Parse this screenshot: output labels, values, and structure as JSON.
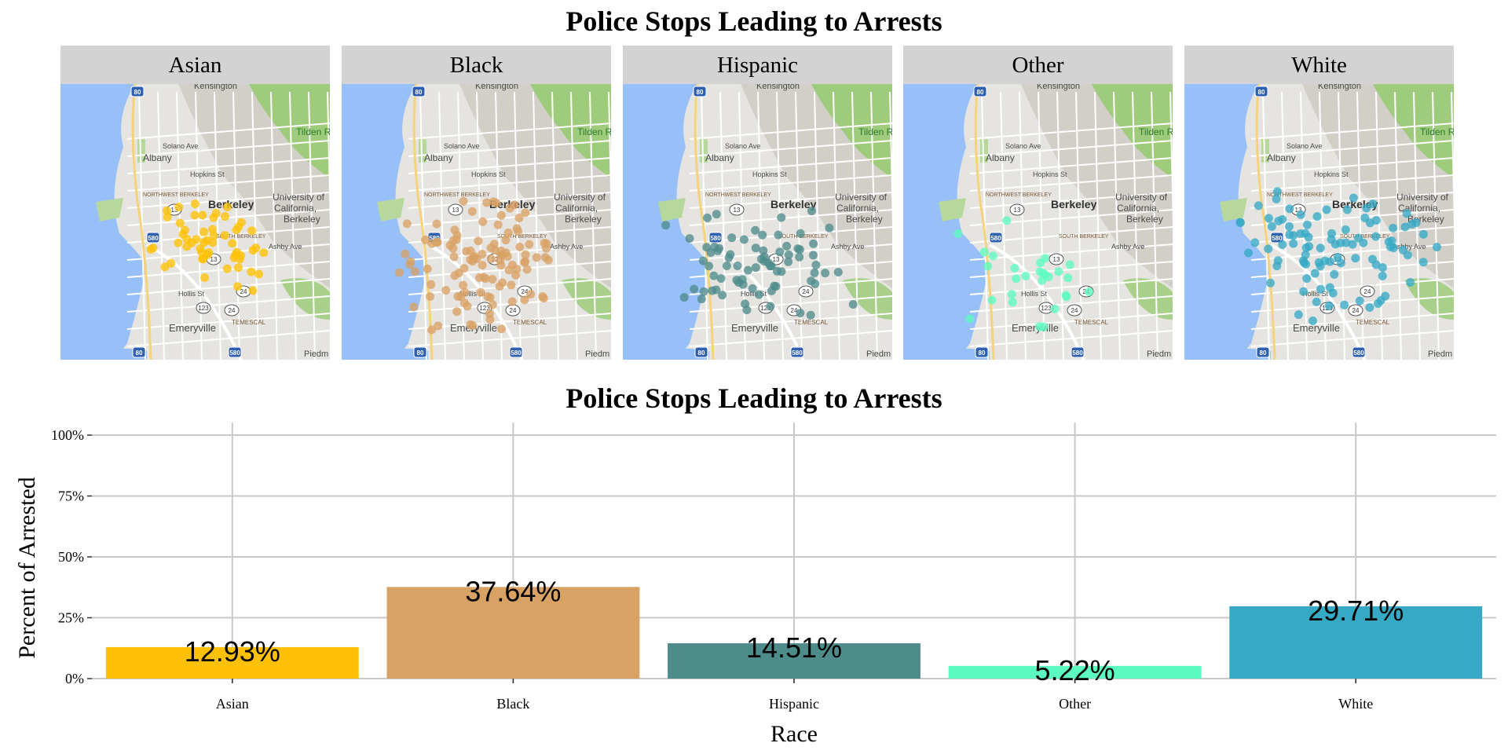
{
  "maps": {
    "title": "Police Stops Leading to Arrests",
    "basemap_labels": [
      "Kensington",
      "Albany",
      "Solano Ave",
      "Hopkins St",
      "NORTHWEST BERKELEY",
      "Berkeley",
      "University of California, Berkeley",
      "SOUTH BERKELEY",
      "Ashby Ave",
      "Hollis St",
      "TEMESCAL",
      "Emeryville",
      "Tilden Regional Park",
      "Piedm",
      "80",
      "580",
      "13",
      "24",
      "123"
    ],
    "panels": [
      {
        "label": "Asian",
        "color": "#FFC107"
      },
      {
        "label": "Black",
        "color": "#D9A265"
      },
      {
        "label": "Hispanic",
        "color": "#4E8C8C"
      },
      {
        "label": "Other",
        "color": "#5CFBC2"
      },
      {
        "label": "White",
        "color": "#36A9C5"
      }
    ]
  },
  "chart_data": {
    "type": "bar",
    "title": "Police Stops Leading to Arrests",
    "xlabel": "Race",
    "ylabel": "Percent of Arrested",
    "categories": [
      "Asian",
      "Black",
      "Hispanic",
      "Other",
      "White"
    ],
    "values": [
      12.93,
      37.64,
      14.51,
      5.22,
      29.71
    ],
    "value_labels": [
      "12.93%",
      "37.64%",
      "14.51%",
      "5.22%",
      "29.71%"
    ],
    "colors": [
      "#FFC107",
      "#D9A265",
      "#4E8C8C",
      "#5CFBC2",
      "#36A9C5"
    ],
    "ylim": [
      0,
      100
    ],
    "yticks": [
      0,
      25,
      50,
      75,
      100
    ],
    "ytick_labels": [
      "0%",
      "25%",
      "50%",
      "75%",
      "100%"
    ],
    "grid": true,
    "legend": "none"
  }
}
